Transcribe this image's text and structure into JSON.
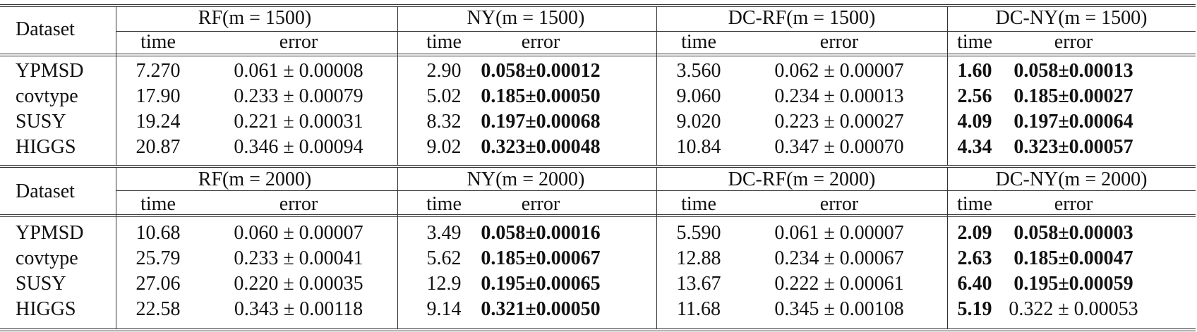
{
  "blocks": [
    {
      "row_header": "Dataset",
      "groups": [
        "RF(m = 1500)",
        "NY(m = 1500)",
        "DC-RF(m = 1500)",
        "DC-NY(m = 1500)"
      ],
      "subheaders": [
        "time",
        "error",
        "time",
        "error",
        "time",
        "error",
        "time",
        "error"
      ],
      "rows": [
        {
          "dataset": "YPMSD",
          "cells": [
            {
              "text": "7.270",
              "bold": false
            },
            {
              "text": "0.061 ± 0.00008",
              "bold": false
            },
            {
              "text": "2.90",
              "bold": false
            },
            {
              "text": "0.058±0.00012",
              "bold": true
            },
            {
              "text": "3.560",
              "bold": false
            },
            {
              "text": "0.062 ± 0.00007",
              "bold": false
            },
            {
              "text": "1.60",
              "bold": true
            },
            {
              "text": "0.058±0.00013",
              "bold": true
            }
          ]
        },
        {
          "dataset": "covtype",
          "cells": [
            {
              "text": "17.90",
              "bold": false
            },
            {
              "text": "0.233 ± 0.00079",
              "bold": false
            },
            {
              "text": "5.02",
              "bold": false
            },
            {
              "text": "0.185±0.00050",
              "bold": true
            },
            {
              "text": "9.060",
              "bold": false
            },
            {
              "text": "0.234 ± 0.00013",
              "bold": false
            },
            {
              "text": "2.56",
              "bold": true
            },
            {
              "text": "0.185±0.00027",
              "bold": true
            }
          ]
        },
        {
          "dataset": "SUSY",
          "cells": [
            {
              "text": "19.24",
              "bold": false
            },
            {
              "text": "0.221 ± 0.00031",
              "bold": false
            },
            {
              "text": "8.32",
              "bold": false
            },
            {
              "text": "0.197±0.00068",
              "bold": true
            },
            {
              "text": "9.020",
              "bold": false
            },
            {
              "text": "0.223 ± 0.00027",
              "bold": false
            },
            {
              "text": "4.09",
              "bold": true
            },
            {
              "text": "0.197±0.00064",
              "bold": true
            }
          ]
        },
        {
          "dataset": "HIGGS",
          "cells": [
            {
              "text": "20.87",
              "bold": false
            },
            {
              "text": "0.346 ± 0.00094",
              "bold": false
            },
            {
              "text": "9.02",
              "bold": false
            },
            {
              "text": "0.323±0.00048",
              "bold": true
            },
            {
              "text": "10.84",
              "bold": false
            },
            {
              "text": "0.347 ± 0.00070",
              "bold": false
            },
            {
              "text": "4.34",
              "bold": true
            },
            {
              "text": "0.323±0.00057",
              "bold": true
            }
          ]
        }
      ]
    },
    {
      "row_header": "Dataset",
      "groups": [
        "RF(m = 2000)",
        "NY(m = 2000)",
        "DC-RF(m = 2000)",
        "DC-NY(m = 2000)"
      ],
      "subheaders": [
        "time",
        "error",
        "time",
        "error",
        "time",
        "error",
        "time",
        "error"
      ],
      "rows": [
        {
          "dataset": "YPMSD",
          "cells": [
            {
              "text": "10.68",
              "bold": false
            },
            {
              "text": "0.060 ± 0.00007",
              "bold": false
            },
            {
              "text": "3.49",
              "bold": false
            },
            {
              "text": "0.058±0.00016",
              "bold": true
            },
            {
              "text": "5.590",
              "bold": false
            },
            {
              "text": "0.061 ± 0.00007",
              "bold": false
            },
            {
              "text": "2.09",
              "bold": true
            },
            {
              "text": "0.058±0.00003",
              "bold": true
            }
          ]
        },
        {
          "dataset": "covtype",
          "cells": [
            {
              "text": "25.79",
              "bold": false
            },
            {
              "text": "0.233 ± 0.00041",
              "bold": false
            },
            {
              "text": "5.62",
              "bold": false
            },
            {
              "text": "0.185±0.00067",
              "bold": true
            },
            {
              "text": "12.88",
              "bold": false
            },
            {
              "text": "0.234 ± 0.00067",
              "bold": false
            },
            {
              "text": "2.63",
              "bold": true
            },
            {
              "text": "0.185±0.00047",
              "bold": true
            }
          ]
        },
        {
          "dataset": "SUSY",
          "cells": [
            {
              "text": "27.06",
              "bold": false
            },
            {
              "text": "0.220 ± 0.00035",
              "bold": false
            },
            {
              "text": "12.9",
              "bold": false
            },
            {
              "text": "0.195±0.00065",
              "bold": true
            },
            {
              "text": "13.67",
              "bold": false
            },
            {
              "text": "0.222 ± 0.00061",
              "bold": false
            },
            {
              "text": "6.40",
              "bold": true
            },
            {
              "text": "0.195±0.00059",
              "bold": true
            }
          ]
        },
        {
          "dataset": "HIGGS",
          "cells": [
            {
              "text": "22.58",
              "bold": false
            },
            {
              "text": "0.343 ± 0.00118",
              "bold": false
            },
            {
              "text": "9.14",
              "bold": false
            },
            {
              "text": "0.321±0.00050",
              "bold": true
            },
            {
              "text": "11.68",
              "bold": false
            },
            {
              "text": "0.345 ± 0.00108",
              "bold": false
            },
            {
              "text": "5.19",
              "bold": true
            },
            {
              "text": "0.322 ± 0.00053",
              "bold": false
            }
          ]
        }
      ]
    }
  ]
}
